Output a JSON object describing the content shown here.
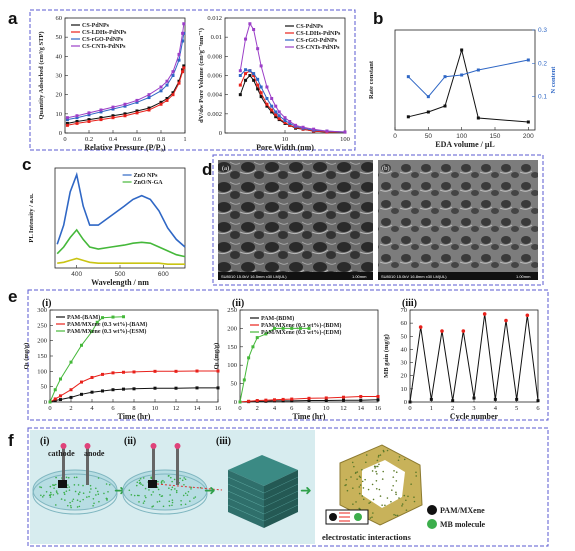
{
  "panels": {
    "a": "a",
    "b": "b",
    "c": "c",
    "d": "d",
    "e": "e",
    "f": "f"
  },
  "roman": {
    "i": "(i)",
    "ii": "(ii)",
    "iii": "(iii)"
  },
  "sem": {
    "left": {
      "tag": "(a)",
      "info": "SU8010 15.0kV 16.5mm x30 LM(UL)",
      "scale": "1.00mm"
    },
    "right": {
      "tag": "(b)",
      "info": "SU8010 15.0kV 16.8mm x30 LM(UL)",
      "scale": "1.00mm"
    }
  },
  "scheme": {
    "cathode": "cathode",
    "anode": "anode",
    "legend_dark": "PAM/MXene",
    "legend_green": "MB molecule",
    "caption": "electrostatic interactions",
    "colors": {
      "water": "#b7dde3",
      "particle": "#3cae4c",
      "bg": "#d7ecef",
      "cube": "#2f6f6b"
    }
  },
  "colors": {
    "black": "#111111",
    "red": "#e8211b",
    "purple": "#9b3ec7",
    "green": "#45b83a",
    "blue": "#2f67c5",
    "yellow": "#c9c413",
    "frame": "#5a5ad2"
  },
  "chart_data": [
    {
      "id": "a-left",
      "type": "line",
      "xlabel": "Relative Pressure (P/P₀)",
      "ylabel": "Quantity Adsorbed (cm³/g STP)",
      "xlim": [
        0,
        1.0
      ],
      "ylim": [
        0,
        60
      ],
      "xticks": [
        0.0,
        0.2,
        0.4,
        0.6,
        0.8,
        1.0
      ],
      "yticks": [
        0,
        10,
        20,
        30,
        40,
        50,
        60
      ],
      "legend": "top-left",
      "series": [
        {
          "name": "CS-PdNPs",
          "color": "#111111",
          "x": [
            0.02,
            0.1,
            0.2,
            0.3,
            0.4,
            0.5,
            0.6,
            0.7,
            0.8,
            0.85,
            0.9,
            0.95,
            0.98,
            0.99
          ],
          "y": [
            5,
            6,
            7,
            8,
            9,
            10,
            11.5,
            13,
            16,
            18,
            21,
            27,
            33,
            35
          ]
        },
        {
          "name": "CS-LDHs-PdNPs",
          "color": "#e8211b",
          "x": [
            0.02,
            0.1,
            0.2,
            0.3,
            0.4,
            0.5,
            0.6,
            0.7,
            0.8,
            0.85,
            0.9,
            0.95,
            0.98,
            0.99
          ],
          "y": [
            4,
            5,
            6,
            7,
            8,
            9,
            10.5,
            12,
            15,
            17,
            20,
            26,
            32,
            34
          ]
        },
        {
          "name": "CS-rGO-PdNPs",
          "color": "#2f67c5",
          "x": [
            0.02,
            0.1,
            0.2,
            0.3,
            0.4,
            0.5,
            0.6,
            0.7,
            0.8,
            0.85,
            0.9,
            0.95,
            0.98,
            0.99
          ],
          "y": [
            7,
            8,
            9.5,
            11,
            12.5,
            14,
            16,
            18.5,
            22,
            25,
            30,
            38,
            48,
            52
          ]
        },
        {
          "name": "CS-CNTs-PdNPs",
          "color": "#9b3ec7",
          "x": [
            0.02,
            0.1,
            0.2,
            0.3,
            0.4,
            0.5,
            0.6,
            0.7,
            0.8,
            0.85,
            0.9,
            0.95,
            0.98,
            0.99
          ],
          "y": [
            8,
            9,
            10.5,
            12,
            13.5,
            15,
            17,
            20,
            24,
            27,
            32,
            41,
            52,
            57
          ]
        }
      ]
    },
    {
      "id": "a-right",
      "type": "line",
      "xlabel": "Pore Width (nm)",
      "ylabel": "dV/dw Pore Volume (cm³g⁻¹nm⁻¹)",
      "xlim": [
        1,
        100
      ],
      "xscale": "log",
      "ylim": [
        0,
        0.012
      ],
      "xticks": [
        10,
        100
      ],
      "yticks": [
        0.0,
        0.002,
        0.004,
        0.006,
        0.008,
        0.01,
        0.012
      ],
      "legend": "right",
      "series": [
        {
          "name": "CS-PdNPs",
          "color": "#111111",
          "x": [
            1.8,
            2.2,
            2.6,
            3,
            3.5,
            4,
            5,
            6,
            7,
            8,
            10,
            12,
            15,
            20,
            30,
            50,
            100
          ],
          "y": [
            0.004,
            0.0055,
            0.006,
            0.0055,
            0.0046,
            0.0038,
            0.0028,
            0.0022,
            0.0017,
            0.0014,
            0.001,
            0.0008,
            0.0005,
            0.0004,
            0.0002,
            0.0001,
            0.0001
          ]
        },
        {
          "name": "CS-LDHs-PdNPs",
          "color": "#e8211b",
          "x": [
            1.8,
            2.2,
            2.6,
            3,
            3.5,
            4,
            5,
            6,
            7,
            8,
            10,
            12,
            15,
            20,
            30,
            50,
            100
          ],
          "y": [
            0.005,
            0.0062,
            0.0065,
            0.006,
            0.005,
            0.0042,
            0.003,
            0.0024,
            0.0019,
            0.0015,
            0.0011,
            0.0008,
            0.0006,
            0.0004,
            0.0002,
            0.0001,
            0.0001
          ]
        },
        {
          "name": "CS-rGO-PdNPs",
          "color": "#2f67c5",
          "x": [
            1.8,
            2.2,
            2.6,
            3,
            3.5,
            4,
            5,
            6,
            7,
            8,
            10,
            12,
            15,
            20,
            30,
            50,
            100
          ],
          "y": [
            0.006,
            0.0066,
            0.0065,
            0.0062,
            0.0056,
            0.0048,
            0.0036,
            0.0028,
            0.0022,
            0.0018,
            0.0013,
            0.001,
            0.0007,
            0.0005,
            0.0003,
            0.0002,
            0.0001
          ]
        },
        {
          "name": "CS-CNTs-PdNPs",
          "color": "#9b3ec7",
          "x": [
            1.8,
            2.2,
            2.6,
            3,
            3.5,
            4,
            5,
            6,
            7,
            8,
            10,
            12,
            15,
            20,
            30,
            50,
            100
          ],
          "y": [
            0.0065,
            0.0098,
            0.0114,
            0.0108,
            0.0088,
            0.007,
            0.0048,
            0.0036,
            0.0028,
            0.0022,
            0.0016,
            0.0012,
            0.0008,
            0.0006,
            0.0004,
            0.0002,
            0.0001
          ]
        }
      ]
    },
    {
      "id": "b",
      "type": "line",
      "xlabel": "EDA volume / μL",
      "ylabel": "Rate constant",
      "y2label": "N content",
      "xlim": [
        0,
        210
      ],
      "ylim": [
        0,
        0.25
      ],
      "y2lim": [
        0,
        0.3
      ],
      "xticks": [
        0,
        50,
        100,
        150,
        200
      ],
      "y2ticks": [
        0.1,
        0.2,
        0.3
      ],
      "series": [
        {
          "name": "Rate constant",
          "color": "#111111",
          "axis": "left",
          "x": [
            20,
            50,
            75,
            100,
            125,
            200
          ],
          "y": [
            0.033,
            0.045,
            0.06,
            0.2,
            0.03,
            0.02
          ]
        },
        {
          "name": "N content",
          "color": "#2f67c5",
          "axis": "right",
          "x": [
            20,
            50,
            75,
            100,
            125,
            200
          ],
          "y": [
            0.16,
            0.1,
            0.16,
            0.165,
            0.18,
            0.21
          ]
        }
      ]
    },
    {
      "id": "c",
      "type": "line",
      "xlabel": "Wavelength / nm",
      "ylabel": "PL Intensity / a.u.",
      "xlim": [
        350,
        650
      ],
      "xticks": [
        400,
        500,
        600
      ],
      "legend": "top-right",
      "series": [
        {
          "name": "ZnO NPs",
          "color": "#2f67c5",
          "x": [
            355,
            370,
            385,
            400,
            415,
            430,
            450,
            480,
            510,
            530,
            550,
            570,
            590,
            610,
            630,
            650
          ],
          "y": [
            0.25,
            0.45,
            0.8,
            0.98,
            0.65,
            0.45,
            0.45,
            0.55,
            0.65,
            0.72,
            0.76,
            0.72,
            0.6,
            0.42,
            0.3,
            0.22
          ]
        },
        {
          "name": "ZnO/N-GA",
          "color": "#45b83a",
          "x": [
            355,
            370,
            385,
            400,
            415,
            430,
            450,
            480,
            510,
            530,
            550,
            570,
            590,
            610,
            630,
            650
          ],
          "y": [
            0.15,
            0.22,
            0.32,
            0.4,
            0.3,
            0.22,
            0.2,
            0.22,
            0.24,
            0.26,
            0.27,
            0.26,
            0.22,
            0.18,
            0.14,
            0.12
          ]
        },
        {
          "name": "",
          "color": "#c9c413",
          "x": [
            355,
            370,
            385,
            400,
            415,
            430,
            450,
            480,
            510,
            530,
            550,
            570,
            590,
            610,
            630,
            650
          ],
          "y": [
            0.05,
            0.06,
            0.08,
            0.1,
            0.08,
            0.06,
            0.05,
            0.05,
            0.05,
            0.05,
            0.05,
            0.05,
            0.05,
            0.04,
            0.04,
            0.04
          ]
        }
      ]
    },
    {
      "id": "e-i",
      "type": "line",
      "xlabel": "Time (hr)",
      "ylabel": "Qₜ (mg/g)",
      "xlim": [
        0,
        16
      ],
      "ylim": [
        0,
        300
      ],
      "xticks": [
        0,
        2,
        4,
        6,
        8,
        10,
        12,
        14,
        16
      ],
      "yticks": [
        0,
        50,
        100,
        150,
        200,
        250,
        300
      ],
      "legend": "top-left",
      "series": [
        {
          "name": "PAM-(BAM)",
          "color": "#111111",
          "x": [
            0,
            0.5,
            1,
            2,
            3,
            4,
            5,
            6,
            7,
            8,
            10,
            12,
            14,
            16
          ],
          "y": [
            0,
            5,
            8,
            15,
            25,
            32,
            36,
            40,
            42,
            43,
            45,
            45,
            46,
            46
          ]
        },
        {
          "name": "PAM/MXene (0.3 wt%)-(BAM)",
          "color": "#e8211b",
          "x": [
            0,
            0.5,
            1,
            2,
            3,
            4,
            5,
            6,
            7,
            8,
            10,
            12,
            14,
            16
          ],
          "y": [
            0,
            10,
            20,
            40,
            65,
            80,
            90,
            95,
            97,
            98,
            100,
            100,
            101,
            101
          ]
        },
        {
          "name": "PAM/MXene (0.3 wt%)-(ESM)",
          "color": "#45b83a",
          "x": [
            0,
            0.5,
            1,
            2,
            3,
            4,
            4.5,
            5,
            6,
            7
          ],
          "y": [
            0,
            40,
            75,
            130,
            185,
            230,
            260,
            275,
            277,
            278
          ]
        }
      ]
    },
    {
      "id": "e-ii",
      "type": "line",
      "xlabel": "Time (hr)",
      "ylabel": "Qₜ (mg/g)",
      "xlim": [
        0,
        16
      ],
      "ylim": [
        0,
        250
      ],
      "xticks": [
        0,
        2,
        4,
        6,
        8,
        10,
        12,
        14,
        16
      ],
      "yticks": [
        0,
        50,
        100,
        150,
        200,
        250
      ],
      "legend": "top-center",
      "series": [
        {
          "name": "PAM-(BDM)",
          "color": "#111111",
          "x": [
            0,
            1,
            2,
            3,
            4,
            5,
            6,
            8,
            10,
            12,
            14,
            16
          ],
          "y": [
            0,
            1,
            2,
            2,
            3,
            3,
            3,
            4,
            4,
            5,
            5,
            6
          ]
        },
        {
          "name": "PAM/MXene (0.3 wt%)-(BDM)",
          "color": "#e8211b",
          "x": [
            0,
            1,
            2,
            3,
            4,
            5,
            6,
            8,
            10,
            12,
            14,
            16
          ],
          "y": [
            0,
            2,
            4,
            5,
            6,
            7,
            8,
            10,
            11,
            13,
            15,
            15
          ]
        },
        {
          "name": "PAM/MXene (0.3 wt%)-(EDM)",
          "color": "#45b83a",
          "x": [
            0,
            0.5,
            1,
            1.5,
            2,
            3,
            4,
            5,
            6,
            7,
            8
          ],
          "y": [
            0,
            60,
            120,
            150,
            175,
            185,
            200,
            200,
            200,
            200,
            200
          ]
        }
      ]
    },
    {
      "id": "e-iii",
      "type": "line",
      "xlabel": "Cycle number",
      "ylabel": "MB gain (mg/g)",
      "xlim": [
        0,
        6
      ],
      "ylim": [
        0,
        70
      ],
      "xticks": [
        0,
        1,
        2,
        3,
        4,
        5,
        6
      ],
      "yticks": [
        0,
        10,
        20,
        30,
        40,
        50,
        60,
        70
      ],
      "series": [
        {
          "name": "",
          "color": "#111111",
          "x": [
            0,
            0.5,
            1,
            1.5,
            2,
            2.5,
            3,
            3.5,
            4,
            4.5,
            5,
            5.5,
            6
          ],
          "y": [
            0,
            57,
            2,
            54,
            1,
            54,
            3,
            67,
            2,
            62,
            2,
            66,
            1
          ]
        }
      ]
    }
  ]
}
